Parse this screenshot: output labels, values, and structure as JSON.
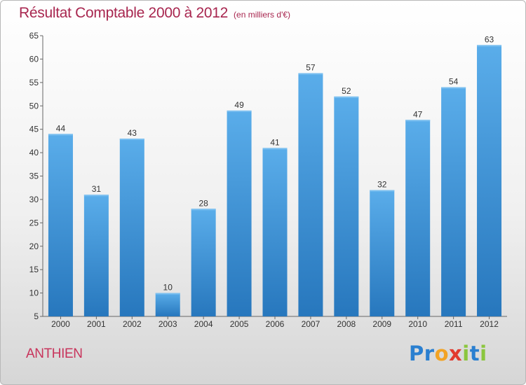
{
  "title": "Résultat Comptable 2000 à 2012",
  "subtitle": "(en milliers d'€)",
  "commune": "ANTHIEN",
  "logo": {
    "letters": [
      "P",
      "r",
      "o",
      "x",
      "i",
      "t",
      "i"
    ],
    "colors": [
      "#2a7fd0",
      "#2a7fd0",
      "#f2a324",
      "#e23a2e",
      "#8bc63e",
      "#2a7fd0",
      "#8bc63e"
    ]
  },
  "chart_data": {
    "type": "bar",
    "categories": [
      "2000",
      "2001",
      "2002",
      "2003",
      "2004",
      "2005",
      "2006",
      "2007",
      "2008",
      "2009",
      "2010",
      "2011",
      "2012"
    ],
    "values": [
      44,
      31,
      43,
      10,
      28,
      49,
      41,
      57,
      52,
      32,
      47,
      54,
      63
    ],
    "title": "Résultat Comptable 2000 à 2012",
    "subtitle": "(en milliers d'€)",
    "xlabel": "",
    "ylabel": "",
    "ylim": [
      5,
      65
    ],
    "yticks": [
      5,
      10,
      15,
      20,
      25,
      30,
      35,
      40,
      45,
      50,
      55,
      60,
      65
    ],
    "grid": false,
    "bar_color": "#3d8fd6",
    "bar_color_light": "#5aadea"
  }
}
